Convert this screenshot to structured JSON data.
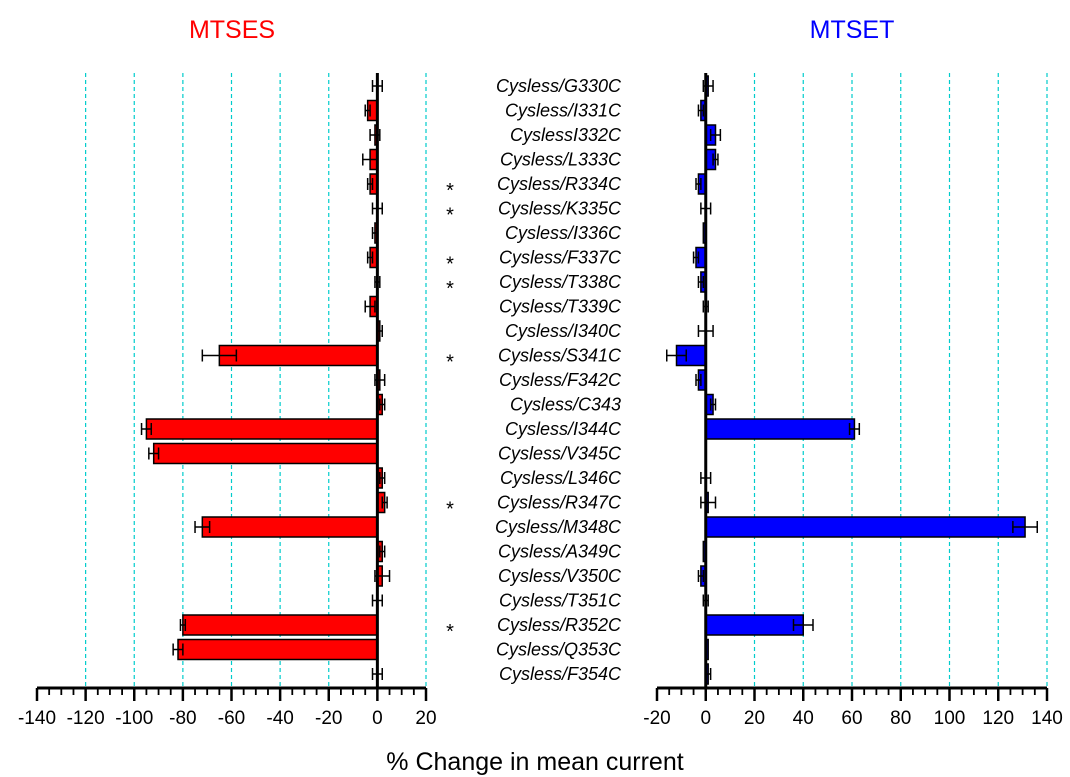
{
  "chart_data": [
    {
      "type": "bar",
      "orientation": "horizontal",
      "title": "MTSES",
      "title_color": "#ff0000",
      "bar_color": "#ff0000",
      "grid_color": "#00cccc",
      "grid": true,
      "xlim": [
        -140,
        20
      ],
      "ticks": [
        -140,
        -120,
        -100,
        -80,
        -60,
        -40,
        -20,
        0,
        20
      ],
      "tick_labels": [
        "-140",
        "-120",
        "-100",
        "-80",
        "-60",
        "-40",
        "-20",
        "0",
        "20"
      ],
      "categories": [
        "Cysless/G330C",
        "Cysless/I331C",
        "CyslessI332C",
        "Cysless/L333C",
        "Cysless/R334C",
        "Cysless/K335C",
        "Cysless/I336C",
        "Cysless/F337C",
        "Cysless/T338C",
        "Cysless/T339C",
        "Cysless/I340C",
        "Cysless/S341C",
        "Cysless/F342C",
        "Cysless/C343",
        "Cysless/I344C",
        "Cysless/V345C",
        "Cysless/L346C",
        "Cysless/R347C",
        "Cysless/M348C",
        "Cysless/A349C",
        "Cysless/V350C",
        "Cysless/T351C",
        "Cysless/R352C",
        "Cysless/Q353C",
        "Cysless/F354C"
      ],
      "values": [
        0,
        -4,
        -1,
        -3,
        -3,
        0,
        -1,
        -3,
        0,
        -3,
        1,
        -65,
        1,
        2,
        -95,
        -92,
        2,
        3,
        -72,
        2,
        2,
        0,
        -80,
        -82,
        0
      ],
      "errors": [
        2,
        1,
        2,
        3,
        1,
        2,
        1,
        1,
        1,
        2,
        1,
        7,
        2,
        1,
        2,
        2,
        1,
        1,
        3,
        1,
        3,
        2,
        1,
        2,
        2
      ]
    },
    {
      "type": "bar",
      "orientation": "horizontal",
      "title": "MTSET",
      "title_color": "#0000ff",
      "bar_color": "#0000ff",
      "grid_color": "#00cccc",
      "grid": true,
      "xlim": [
        -20,
        140
      ],
      "ticks": [
        -20,
        0,
        20,
        40,
        60,
        80,
        100,
        120,
        140
      ],
      "tick_labels": [
        "-20",
        "0",
        "20",
        "40",
        "60",
        "80",
        "100",
        "120",
        "140"
      ],
      "categories": [
        "Cysless/G330C",
        "Cysless/I331C",
        "CyslessI332C",
        "Cysless/L333C",
        "Cysless/R334C",
        "Cysless/K335C",
        "Cysless/I336C",
        "Cysless/F337C",
        "Cysless/T338C",
        "Cysless/T339C",
        "Cysless/I340C",
        "Cysless/S341C",
        "Cysless/F342C",
        "Cysless/C343",
        "Cysless/I344C",
        "Cysless/V345C",
        "Cysless/L346C",
        "Cysless/R347C",
        "Cysless/M348C",
        "Cysless/A349C",
        "Cysless/V350C",
        "Cysless/T351C",
        "Cysless/R352C",
        "Cysless/Q353C",
        "Cysless/F354C"
      ],
      "values": [
        1,
        -2,
        4,
        4,
        -3,
        0,
        -1,
        -4,
        -2,
        0,
        0,
        -12,
        -3,
        3,
        61,
        0,
        0,
        1,
        131,
        -1,
        -2,
        0,
        40,
        1,
        1
      ],
      "errors": [
        2,
        1,
        2,
        1,
        1,
        2,
        0,
        1,
        1,
        1,
        3,
        4,
        1,
        1,
        2,
        0,
        2,
        3,
        5,
        0,
        1,
        1,
        4,
        0,
        1
      ]
    }
  ],
  "starred_categories": [
    "Cysless/R334C",
    "Cysless/K335C",
    "Cysless/F337C",
    "Cysless/T338C",
    "Cysless/S341C",
    "Cysless/R347C",
    "Cysless/R352C"
  ],
  "star_symbol": "*",
  "xlabel": "% Change in mean current"
}
